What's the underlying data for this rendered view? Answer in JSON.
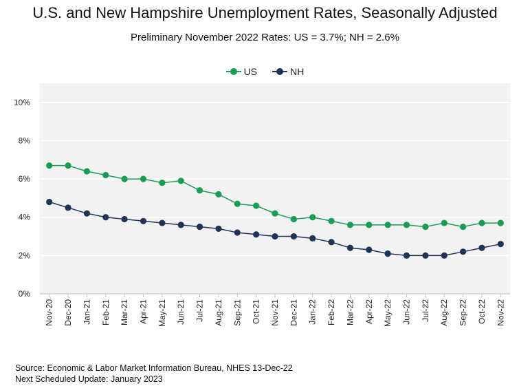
{
  "colors": {
    "us": "#1a9c55",
    "nh": "#1f3356",
    "plot_bg": "#f2f2f2",
    "grid": "#ffffff"
  },
  "chart_data": {
    "type": "line",
    "title": "U.S. and New Hampshire Unemployment Rates, Seasonally Adjusted",
    "subtitle": "Preliminary November 2022 Rates: US = 3.7%; NH = 2.6%",
    "categories": [
      "Nov-20",
      "Dec-20",
      "Jan-21",
      "Feb-21",
      "Mar-21",
      "Apr-21",
      "May-21",
      "Jun-21",
      "Jul-21",
      "Aug-21",
      "Sep-21",
      "Oct-21",
      "Nov-21",
      "Dec-21",
      "Jan-22",
      "Feb-22",
      "Mar-22",
      "Apr-22",
      "May-22",
      "Jun-22",
      "Jul-22",
      "Aug-22",
      "Sep-22",
      "Oct-22",
      "Nov-22"
    ],
    "series": [
      {
        "name": "US",
        "values": [
          6.7,
          6.7,
          6.4,
          6.2,
          6.0,
          6.0,
          5.8,
          5.9,
          5.4,
          5.2,
          4.7,
          4.6,
          4.2,
          3.9,
          4.0,
          3.8,
          3.6,
          3.6,
          3.6,
          3.6,
          3.5,
          3.7,
          3.5,
          3.7,
          3.7
        ]
      },
      {
        "name": "NH",
        "values": [
          4.8,
          4.5,
          4.2,
          4.0,
          3.9,
          3.8,
          3.7,
          3.6,
          3.5,
          3.4,
          3.2,
          3.1,
          3.0,
          3.0,
          2.9,
          2.7,
          2.4,
          2.3,
          2.1,
          2.0,
          2.0,
          2.0,
          2.2,
          2.4,
          2.6
        ]
      }
    ],
    "ylim": [
      0,
      11
    ],
    "yticks": [
      0,
      2,
      4,
      6,
      8,
      10
    ],
    "ytick_labels": [
      "0%",
      "2%",
      "4%",
      "6%",
      "8%",
      "10%"
    ],
    "xlabel": "",
    "ylabel": "",
    "legend": "top-center",
    "grid": true
  },
  "footer": {
    "source": "Source: Economic & Labor Market Information Bureau, NHES 13-Dec-22",
    "next_update": "Next Scheduled Update: January 2023"
  }
}
